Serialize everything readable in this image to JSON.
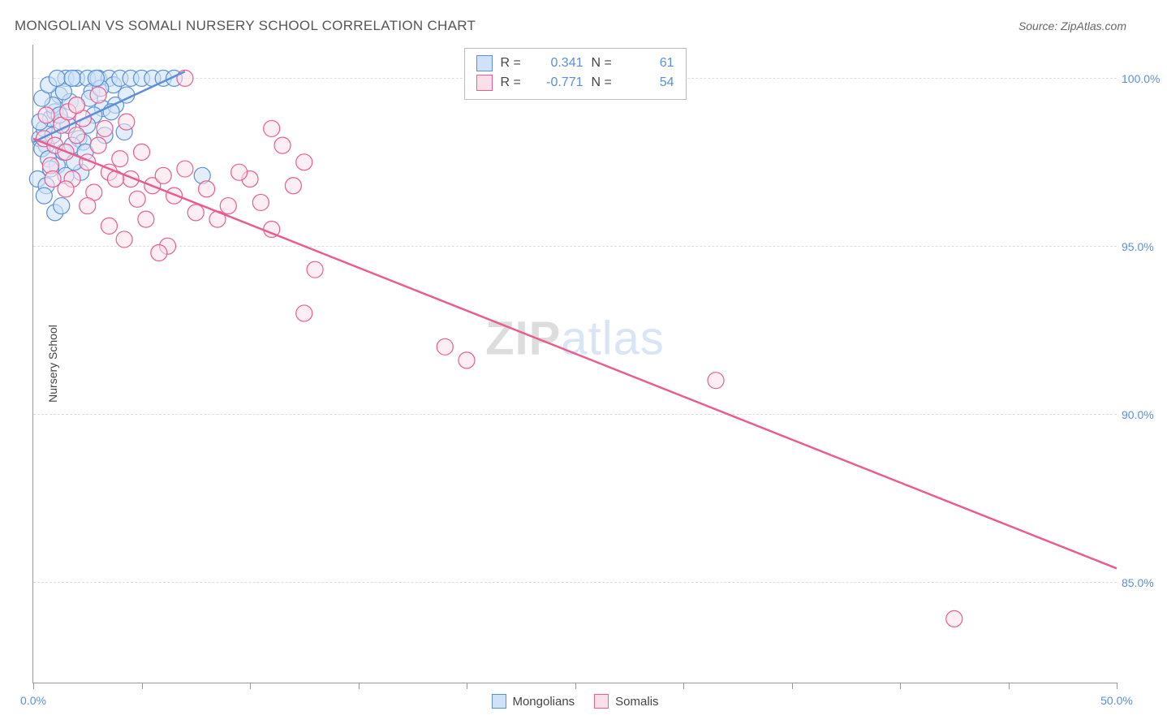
{
  "title": "MONGOLIAN VS SOMALI NURSERY SCHOOL CORRELATION CHART",
  "source": "Source: ZipAtlas.com",
  "watermark_zip": "ZIP",
  "watermark_atlas": "atlas",
  "y_axis_title": "Nursery School",
  "x_axis": {
    "min": 0,
    "max": 50,
    "ticks": [
      0,
      5,
      10,
      15,
      20,
      25,
      30,
      35,
      40,
      45,
      50
    ],
    "labels": {
      "0": "0.0%",
      "50": "50.0%"
    }
  },
  "y_axis": {
    "min": 82,
    "max": 101,
    "gridlines": [
      85,
      90,
      95,
      100
    ],
    "labels": {
      "85": "85.0%",
      "90": "90.0%",
      "95": "95.0%",
      "100": "100.0%"
    }
  },
  "series": [
    {
      "name": "Mongolians",
      "color_fill": "#cfe2f8",
      "color_stroke": "#5b8fd6",
      "marker_radius": 10,
      "marker_opacity": 0.6,
      "r_label": "R =",
      "r_value": "0.341",
      "n_label": "N =",
      "n_value": "61",
      "trend": {
        "x1": 0,
        "y1": 98.1,
        "x2": 7,
        "y2": 100.2
      },
      "points": [
        [
          0.3,
          98.2
        ],
        [
          0.5,
          98.5
        ],
        [
          0.6,
          98.0
        ],
        [
          0.8,
          98.8
        ],
        [
          1.0,
          99.0
        ],
        [
          1.2,
          99.5
        ],
        [
          1.3,
          98.7
        ],
        [
          1.5,
          100.0
        ],
        [
          1.7,
          99.3
        ],
        [
          2.0,
          100.0
        ],
        [
          2.1,
          98.2
        ],
        [
          2.3,
          98.1
        ],
        [
          2.5,
          100.0
        ],
        [
          2.7,
          99.6
        ],
        [
          3.0,
          100.0
        ],
        [
          3.2,
          99.1
        ],
        [
          3.5,
          100.0
        ],
        [
          3.7,
          99.8
        ],
        [
          4.0,
          100.0
        ],
        [
          4.2,
          98.4
        ],
        [
          4.5,
          100.0
        ],
        [
          5.0,
          100.0
        ],
        [
          5.5,
          100.0
        ],
        [
          6.0,
          100.0
        ],
        [
          6.5,
          100.0
        ],
        [
          0.4,
          97.9
        ],
        [
          0.7,
          97.6
        ],
        [
          1.1,
          97.4
        ],
        [
          1.4,
          97.8
        ],
        [
          1.8,
          98.0
        ],
        [
          2.2,
          97.2
        ],
        [
          0.9,
          98.3
        ],
        [
          1.6,
          98.6
        ],
        [
          2.8,
          98.9
        ],
        [
          3.3,
          98.3
        ],
        [
          0.2,
          97.0
        ],
        [
          0.6,
          96.8
        ],
        [
          1.0,
          96.0
        ],
        [
          1.3,
          96.2
        ],
        [
          0.8,
          97.3
        ],
        [
          0.5,
          96.5
        ],
        [
          1.5,
          97.1
        ],
        [
          1.9,
          97.5
        ],
        [
          2.4,
          97.8
        ],
        [
          0.3,
          98.7
        ],
        [
          0.9,
          99.2
        ],
        [
          1.4,
          99.6
        ],
        [
          2.0,
          99.2
        ],
        [
          2.6,
          99.4
        ],
        [
          3.1,
          99.7
        ],
        [
          3.8,
          99.2
        ],
        [
          4.3,
          99.5
        ],
        [
          0.4,
          99.4
        ],
        [
          0.7,
          99.8
        ],
        [
          1.1,
          100.0
        ],
        [
          1.8,
          100.0
        ],
        [
          2.9,
          100.0
        ],
        [
          3.6,
          99.0
        ],
        [
          7.8,
          97.1
        ],
        [
          1.2,
          98.9
        ],
        [
          2.5,
          98.6
        ]
      ]
    },
    {
      "name": "Somalis",
      "color_fill": "#fbe0ea",
      "color_stroke": "#e85c8e",
      "marker_radius": 10,
      "marker_opacity": 0.55,
      "r_label": "R =",
      "r_value": "-0.771",
      "n_label": "N =",
      "n_value": "54",
      "trend": {
        "x1": 0,
        "y1": 98.2,
        "x2": 50,
        "y2": 85.4
      },
      "points": [
        [
          0.5,
          98.2
        ],
        [
          1.0,
          98.0
        ],
        [
          1.5,
          97.8
        ],
        [
          2.0,
          98.3
        ],
        [
          2.5,
          97.5
        ],
        [
          3.0,
          98.0
        ],
        [
          3.5,
          97.2
        ],
        [
          4.0,
          97.6
        ],
        [
          4.5,
          97.0
        ],
        [
          5.0,
          97.8
        ],
        [
          5.5,
          96.8
        ],
        [
          6.0,
          97.1
        ],
        [
          6.5,
          96.5
        ],
        [
          7.0,
          97.3
        ],
        [
          7.5,
          96.0
        ],
        [
          8.0,
          96.7
        ],
        [
          8.5,
          95.8
        ],
        [
          9.0,
          96.2
        ],
        [
          10.0,
          97.0
        ],
        [
          10.5,
          96.3
        ],
        [
          11.0,
          95.5
        ],
        [
          12.0,
          96.8
        ],
        [
          12.5,
          93.0
        ],
        [
          13.0,
          94.3
        ],
        [
          4.2,
          95.2
        ],
        [
          5.2,
          95.8
        ],
        [
          6.2,
          95.0
        ],
        [
          1.3,
          98.6
        ],
        [
          2.3,
          98.8
        ],
        [
          3.3,
          98.5
        ],
        [
          4.3,
          98.7
        ],
        [
          3.8,
          97.0
        ],
        [
          4.8,
          96.4
        ],
        [
          5.8,
          94.8
        ],
        [
          0.8,
          97.4
        ],
        [
          1.8,
          97.0
        ],
        [
          2.8,
          96.6
        ],
        [
          11.5,
          98.0
        ],
        [
          1.5,
          96.7
        ],
        [
          2.5,
          96.2
        ],
        [
          3.5,
          95.6
        ],
        [
          0.6,
          98.9
        ],
        [
          1.6,
          99.0
        ],
        [
          0.9,
          97.0
        ],
        [
          19.0,
          92.0
        ],
        [
          20.0,
          91.6
        ],
        [
          31.5,
          91.0
        ],
        [
          7.0,
          100.0
        ],
        [
          2.0,
          99.2
        ],
        [
          3.0,
          99.5
        ],
        [
          42.5,
          83.9
        ],
        [
          9.5,
          97.2
        ],
        [
          11.0,
          98.5
        ],
        [
          12.5,
          97.5
        ]
      ]
    }
  ],
  "legend_bottom": [
    {
      "label": "Mongolians",
      "fill": "#cfe2f8",
      "stroke": "#5b8fd6"
    },
    {
      "label": "Somalis",
      "fill": "#fbe0ea",
      "stroke": "#e85c8e"
    }
  ],
  "chart_style": {
    "background_color": "#ffffff",
    "axis_color": "#999999",
    "grid_color": "#dddddd",
    "tick_label_color": "#5b8fd6",
    "title_color": "#555555",
    "title_fontsize": 17,
    "label_fontsize": 14,
    "trend_line_width": 2.5
  }
}
